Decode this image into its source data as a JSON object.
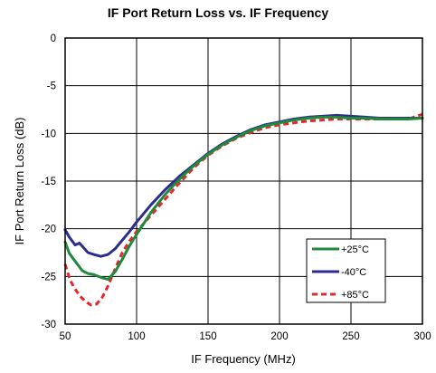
{
  "chart_data": {
    "type": "line",
    "title": "IF Port Return Loss vs. IF Frequency",
    "xlabel": "IF Frequency (MHz)",
    "ylabel": "IF Port Return Loss (dB)",
    "xlim": [
      50,
      300
    ],
    "ylim": [
      -30,
      0
    ],
    "xticks": [
      50,
      100,
      150,
      200,
      250,
      300
    ],
    "yticks": [
      0,
      -5,
      -10,
      -15,
      -20,
      -25,
      -30
    ],
    "grid": true,
    "legend_position": "bottom-right",
    "series": [
      {
        "name": "+25°C",
        "color": "#1f8a3c",
        "dash": "solid",
        "x": [
          50,
          53,
          57,
          62,
          66,
          70,
          75,
          80,
          85,
          90,
          95,
          100,
          110,
          120,
          130,
          140,
          150,
          160,
          170,
          180,
          190,
          200,
          210,
          220,
          230,
          240,
          250,
          260,
          270,
          280,
          290,
          300
        ],
        "y": [
          -21.4,
          -22.6,
          -23.4,
          -24.4,
          -24.7,
          -24.8,
          -25.1,
          -25.3,
          -24.5,
          -23.2,
          -21.8,
          -20.6,
          -18.3,
          -16.4,
          -14.8,
          -13.4,
          -12.2,
          -11.2,
          -10.4,
          -9.7,
          -9.2,
          -8.9,
          -8.6,
          -8.4,
          -8.3,
          -8.3,
          -8.4,
          -8.4,
          -8.5,
          -8.5,
          -8.5,
          -8.4
        ]
      },
      {
        "name": "-40°C",
        "color": "#2b2d8f",
        "dash": "solid",
        "x": [
          50,
          53,
          57,
          60,
          63,
          66,
          70,
          75,
          80,
          85,
          90,
          95,
          100,
          110,
          120,
          130,
          140,
          150,
          160,
          170,
          180,
          190,
          200,
          210,
          220,
          230,
          240,
          250,
          260,
          270,
          280,
          290,
          300
        ],
        "y": [
          -20.1,
          -20.9,
          -21.7,
          -21.5,
          -22.0,
          -22.5,
          -22.7,
          -22.9,
          -22.7,
          -22.1,
          -21.2,
          -20.3,
          -19.3,
          -17.5,
          -15.9,
          -14.5,
          -13.3,
          -12.1,
          -11.1,
          -10.3,
          -9.6,
          -9.1,
          -8.8,
          -8.5,
          -8.3,
          -8.2,
          -8.1,
          -8.2,
          -8.3,
          -8.4,
          -8.4,
          -8.4,
          -8.4
        ]
      },
      {
        "name": "+85°C",
        "color": "#e8262a",
        "dash": "dashed",
        "x": [
          50,
          53,
          56,
          60,
          64,
          68,
          72,
          76,
          80,
          85,
          90,
          95,
          100,
          110,
          120,
          130,
          140,
          150,
          160,
          170,
          180,
          190,
          200,
          210,
          220,
          230,
          240,
          250,
          260,
          270,
          280,
          290,
          300
        ],
        "y": [
          -23.7,
          -25.2,
          -26.1,
          -27.0,
          -27.6,
          -28.0,
          -27.9,
          -27.2,
          -26.0,
          -24.2,
          -22.5,
          -21.3,
          -20.3,
          -18.6,
          -16.9,
          -15.2,
          -13.6,
          -12.3,
          -11.3,
          -10.5,
          -9.9,
          -9.4,
          -9.1,
          -8.9,
          -8.7,
          -8.6,
          -8.5,
          -8.5,
          -8.5,
          -8.5,
          -8.5,
          -8.5,
          -8.0
        ]
      }
    ]
  }
}
